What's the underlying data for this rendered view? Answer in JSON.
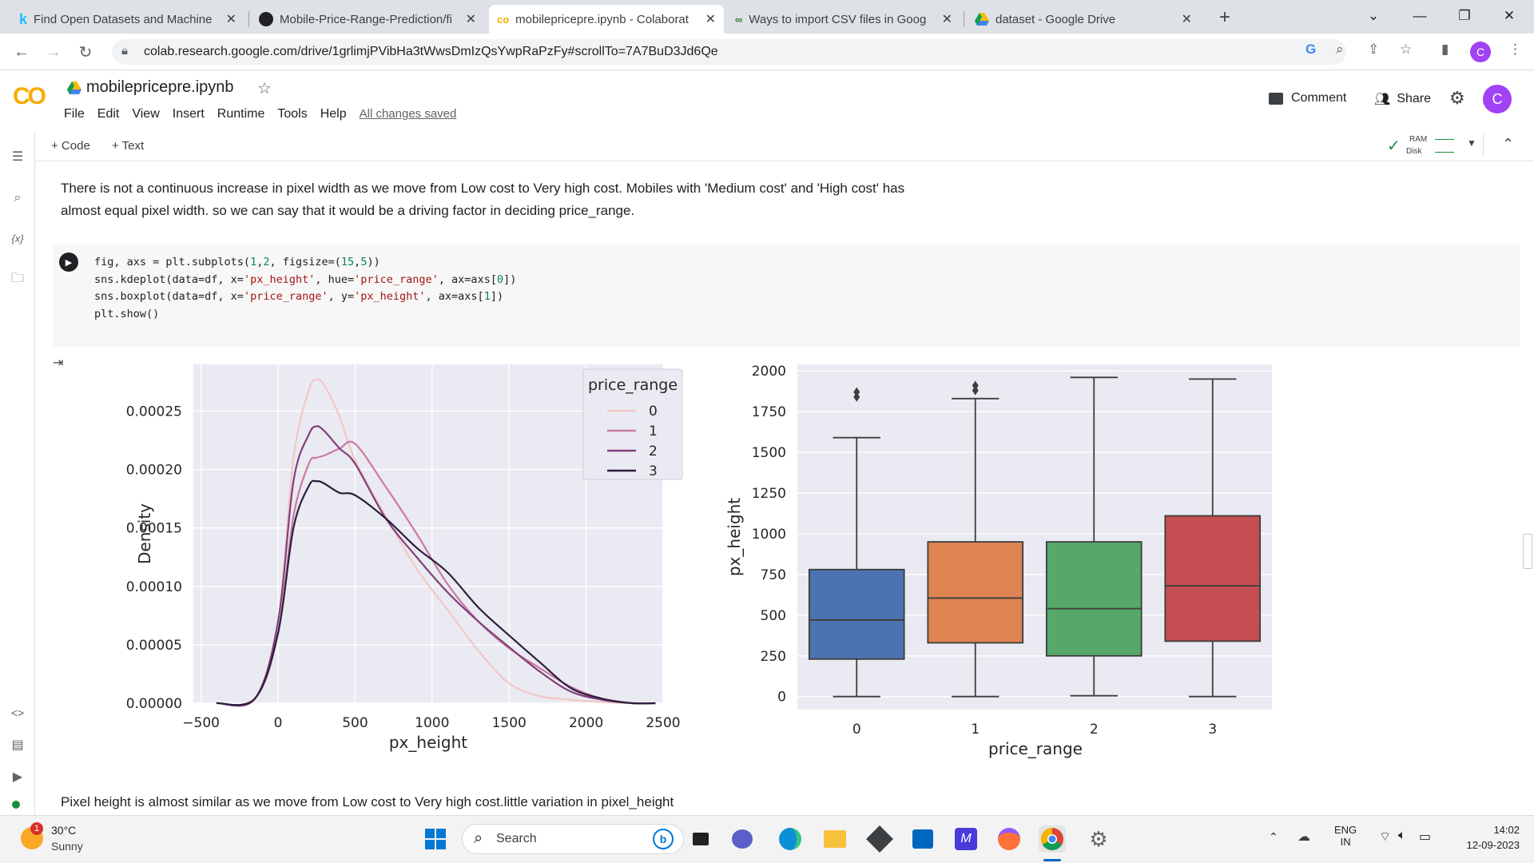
{
  "browser": {
    "tabs": [
      {
        "title": "Find Open Datasets and Machine",
        "icon": "kaggle-k-icon"
      },
      {
        "title": "Mobile-Price-Range-Prediction/fi",
        "icon": "github-icon"
      },
      {
        "title": "mobilepricepre.ipynb - Colaborat",
        "icon": "colab-icon"
      },
      {
        "title": "Ways to import CSV files in Goog",
        "icon": "analytics-icon"
      },
      {
        "title": "dataset - Google Drive",
        "icon": "google-drive-icon"
      }
    ],
    "url": "colab.research.google.com/drive/1grlimjPVibHa3tWwsDmIzQsYwpRaPzFy#scrollTo=7A7BuD3Jd6Qe",
    "profile_initial": "C"
  },
  "colab": {
    "logo": "CO",
    "notebook_name": "mobilepricepre.ipynb",
    "menu": [
      "File",
      "Edit",
      "View",
      "Insert",
      "Runtime",
      "Tools",
      "Help"
    ],
    "save_status": "All changes saved",
    "comment_label": "Comment",
    "share_label": "Share",
    "avatar_initial": "C",
    "add_code": "+ Code",
    "add_text": "+ Text",
    "ram_label": "RAM",
    "disk_label": "Disk"
  },
  "cells": {
    "md1_line1": "There is not a continuous increase in pixel width as we move from Low cost to Very high cost. Mobiles with 'Medium cost' and 'High cost' has",
    "md1_line2": "almost equal pixel width. so we can say that it would be a driving factor in deciding price_range.",
    "code_lines": [
      "fig, axs = plt.subplots(1,2, figsize=(15,5))",
      "sns.kdeplot(data=df, x='px_height', hue='price_range', ax=axs[0])",
      "sns.boxplot(data=df, x='price_range', y='px_height', ax=axs[1])",
      "plt.show()"
    ],
    "md2": "Pixel height is almost similar as we move from Low cost to Very high cost.little variation in pixel_height"
  },
  "chart_data": [
    {
      "type": "line",
      "subtype": "kde",
      "xlabel": "px_height",
      "ylabel": "Density",
      "xlim": [
        -550,
        2500
      ],
      "ylim": [
        0,
        0.00029
      ],
      "xticks": [
        "-500",
        "0",
        "500",
        "1000",
        "1500",
        "2000",
        "2500"
      ],
      "yticks": [
        "0.00000",
        "0.00005",
        "0.00010",
        "0.00015",
        "0.00020",
        "0.00025"
      ],
      "legend_title": "price_range",
      "legend_placement": "top-right",
      "grid": true,
      "x": [
        -400,
        -150,
        0,
        100,
        200,
        250,
        300,
        400,
        500,
        700,
        900,
        1100,
        1300,
        1500,
        1700,
        1900,
        2100,
        2300,
        2450
      ],
      "series": [
        {
          "name": "0",
          "color": "#f1c8c4",
          "values": [
            0.0,
            4e-06,
            7e-05,
            0.00021,
            0.000268,
            0.000277,
            0.000272,
            0.000245,
            0.000208,
            0.00016,
            0.000115,
            8e-05,
            4.5e-05,
            1.7e-05,
            6e-06,
            3e-06,
            1e-06,
            0.0,
            0.0
          ]
        },
        {
          "name": "1",
          "color": "#c97aa0",
          "values": [
            0.0,
            4e-06,
            6e-05,
            0.00016,
            0.000205,
            0.00021,
            0.000212,
            0.000218,
            0.000222,
            0.000185,
            0.000145,
            0.000102,
            7e-05,
            4.7e-05,
            3e-05,
            1.4e-05,
            4e-06,
            0.0,
            0.0
          ]
        },
        {
          "name": "2",
          "color": "#82407a",
          "values": [
            0.0,
            4e-06,
            7e-05,
            0.00019,
            0.00023,
            0.000237,
            0.000233,
            0.000218,
            0.000205,
            0.000158,
            0.000125,
            9.5e-05,
            7e-05,
            4.8e-05,
            2.7e-05,
            1e-05,
            3e-06,
            0.0,
            0.0
          ]
        },
        {
          "name": "3",
          "color": "#2d1e3e",
          "values": [
            0.0,
            4e-06,
            6e-05,
            0.00015,
            0.000186,
            0.00019,
            0.000188,
            0.00018,
            0.000178,
            0.000158,
            0.000133,
            0.000112,
            8.2e-05,
            5.8e-05,
            3.5e-05,
            1.3e-05,
            4e-06,
            0.0,
            0.0
          ]
        }
      ]
    },
    {
      "type": "box",
      "xlabel": "price_range",
      "ylabel": "px_height",
      "categories": [
        "0",
        "1",
        "2",
        "3"
      ],
      "ylim": [
        -80,
        2040
      ],
      "yticks": [
        "0",
        "250",
        "500",
        "750",
        "1000",
        "1250",
        "1500",
        "1750",
        "2000"
      ],
      "grid": true,
      "boxes": [
        {
          "name": "0",
          "color": "#4c72b0",
          "min": 0,
          "q1": 230,
          "median": 470,
          "q3": 780,
          "max": 1590,
          "outliers": [
            1840,
            1870
          ]
        },
        {
          "name": "1",
          "color": "#dd8452",
          "min": 0,
          "q1": 330,
          "median": 605,
          "q3": 950,
          "max": 1830,
          "outliers": [
            1880,
            1910
          ]
        },
        {
          "name": "2",
          "color": "#55a868",
          "min": 5,
          "q1": 250,
          "median": 540,
          "q3": 950,
          "max": 1960,
          "outliers": []
        },
        {
          "name": "3",
          "color": "#c44e52",
          "min": 0,
          "q1": 340,
          "median": 680,
          "q3": 1110,
          "max": 1950,
          "outliers": []
        }
      ]
    }
  ],
  "taskbar": {
    "weather_temp": "30°C",
    "weather_desc": "Sunny",
    "weather_badge": "1",
    "search_label": "Search",
    "lang_line1": "ENG",
    "lang_line2": "IN",
    "time": "14:02",
    "date": "12-09-2023"
  }
}
